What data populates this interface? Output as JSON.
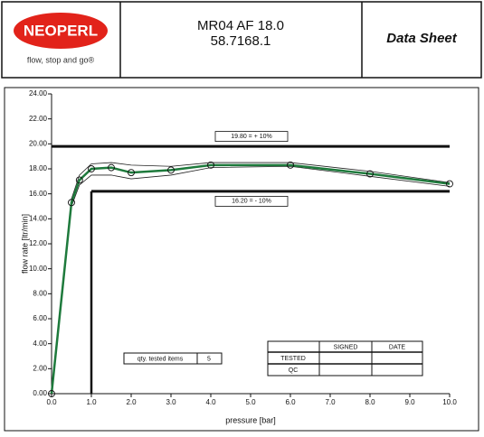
{
  "header": {
    "logo": "NEOPERL",
    "tagline": "flow, stop and go®",
    "model": "MR04 AF 18.0",
    "number": "58.7168.1",
    "doc_type": "Data Sheet"
  },
  "chart_data": {
    "type": "line",
    "x_label": "pressure [bar]",
    "y_label": "flow rate [ltr/min]",
    "x": [
      0,
      0.5,
      0.7,
      1.0,
      1.5,
      2.0,
      3.0,
      4.0,
      6.0,
      8.0,
      10.0
    ],
    "series": [
      {
        "color": "#1e7a3c",
        "markers": true,
        "values": [
          0,
          15.3,
          17.1,
          18.0,
          18.1,
          17.7,
          17.9,
          18.3,
          18.3,
          17.6,
          16.8
        ]
      },
      {
        "color": "#222222",
        "markers": false,
        "values": [
          0,
          15.6,
          17.5,
          18.4,
          18.5,
          18.3,
          18.2,
          18.5,
          18.5,
          17.8,
          16.9
        ]
      },
      {
        "color": "#222222",
        "markers": false,
        "values": [
          0,
          15.0,
          16.7,
          17.5,
          17.5,
          17.2,
          17.5,
          18.1,
          18.2,
          17.4,
          16.6
        ]
      }
    ],
    "limits": [
      {
        "value": 19.8,
        "label": "19.80 = + 10%",
        "x_from": 0
      },
      {
        "value": 16.2,
        "label": "16.20 = - 10%",
        "x_from": 1.0
      }
    ],
    "xlim": [
      0,
      10
    ],
    "xticks": [
      {
        "value": 0,
        "label": "0.0"
      },
      {
        "value": 1,
        "label": "1.0"
      },
      {
        "value": 2,
        "label": "2.0"
      },
      {
        "value": 3,
        "label": "3.0"
      },
      {
        "value": 4,
        "label": "4.0"
      },
      {
        "value": 5,
        "label": "5.0"
      },
      {
        "value": 6,
        "label": "6.0"
      },
      {
        "value": 7,
        "label": "7.0"
      },
      {
        "value": 8,
        "label": "8.0"
      },
      {
        "value": 9,
        "label": "9.0"
      },
      {
        "value": 10,
        "label": "10.0"
      }
    ],
    "ylim": [
      0,
      24
    ],
    "yticks": [
      {
        "value": 0,
        "label": "0.00"
      },
      {
        "value": 2,
        "label": "2.00"
      },
      {
        "value": 4,
        "label": "4.00"
      },
      {
        "value": 6,
        "label": "6.00"
      },
      {
        "value": 8,
        "label": "8.00"
      },
      {
        "value": 10,
        "label": "10.00"
      },
      {
        "value": 12,
        "label": "12.00"
      },
      {
        "value": 14,
        "label": "14.00"
      },
      {
        "value": 16,
        "label": "16.00"
      },
      {
        "value": 18,
        "label": "18.00"
      },
      {
        "value": 20,
        "label": "20.00"
      },
      {
        "value": 22,
        "label": "22.00"
      },
      {
        "value": 24,
        "label": "24.00"
      }
    ]
  },
  "form": {
    "qty_label": "qty. tested items",
    "qty_value": "5",
    "headers": [
      "SIGNED",
      "DATE"
    ],
    "rows": [
      "TESTED",
      "QC"
    ]
  }
}
